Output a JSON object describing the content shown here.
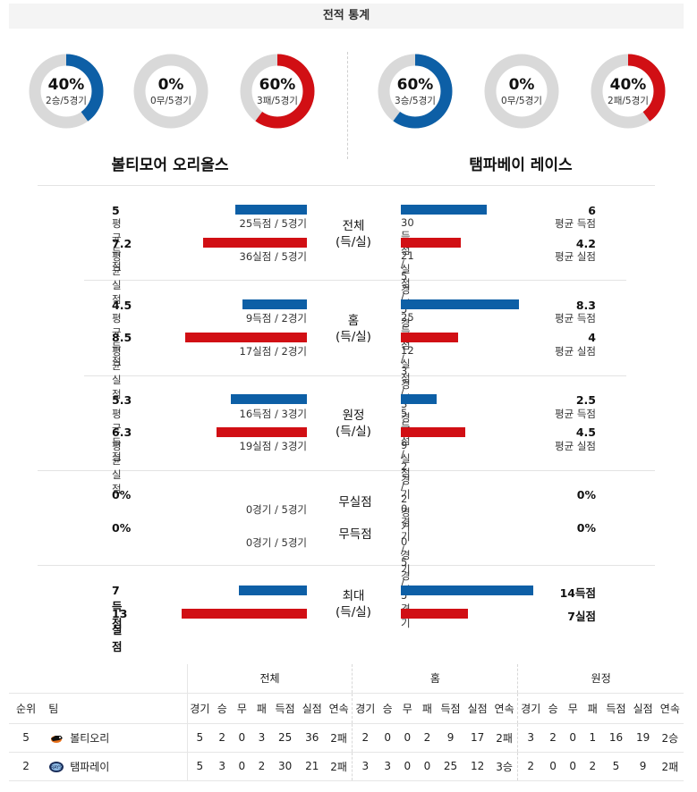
{
  "header": {
    "title": "전적 통계"
  },
  "left_team": {
    "name": "볼티모어 오리올스",
    "donuts": [
      {
        "pct": "40%",
        "sub": "2승/5경기",
        "fraction": 0.4,
        "color": "#0d5fa6"
      },
      {
        "pct": "0%",
        "sub": "0무/5경기",
        "fraction": 0,
        "color": "#0d5fa6"
      },
      {
        "pct": "60%",
        "sub": "3패/5경기",
        "fraction": 0.6,
        "color": "#d10f14"
      }
    ]
  },
  "right_team": {
    "name": "탬파베이 레이스",
    "donuts": [
      {
        "pct": "60%",
        "sub": "3승/5경기",
        "fraction": 0.6,
        "color": "#0d5fa6"
      },
      {
        "pct": "0%",
        "sub": "0무/5경기",
        "fraction": 0,
        "color": "#0d5fa6"
      },
      {
        "pct": "40%",
        "sub": "2패/5경기",
        "fraction": 0.4,
        "color": "#d10f14"
      }
    ]
  },
  "sections": {
    "total": {
      "label_1": "전체",
      "label_2": "(득/실)",
      "left": {
        "scored": "5",
        "scored_label": "평균 득점",
        "scored_detail": "25득점 / 5경기",
        "allowed": "7.2",
        "allowed_label": "평균 실점",
        "allowed_detail": "36실점 / 5경기"
      },
      "right": {
        "scored": "6",
        "scored_label": "평균 득점",
        "scored_detail": "30득점 / 5경기",
        "allowed": "4.2",
        "allowed_label": "평균 실점",
        "allowed_detail": "21실점 / 5경기"
      }
    },
    "home": {
      "label_1": "홈",
      "label_2": "(득/실)",
      "left": {
        "scored": "4.5",
        "scored_label": "평균 득점",
        "scored_detail": "9득점 / 2경기",
        "allowed": "8.5",
        "allowed_label": "평균 실점",
        "allowed_detail": "17실점 / 2경기"
      },
      "right": {
        "scored": "8.3",
        "scored_label": "평균 득점",
        "scored_detail": "25득점 / 3경기",
        "allowed": "4",
        "allowed_label": "평균 실점",
        "allowed_detail": "12실점 / 3경기"
      }
    },
    "away": {
      "label_1": "원정",
      "label_2": "(득/실)",
      "left": {
        "scored": "5.3",
        "scored_label": "평균 득점",
        "scored_detail": "16득점 / 3경기",
        "allowed": "6.3",
        "allowed_label": "평균 실점",
        "allowed_detail": "19실점 / 3경기"
      },
      "right": {
        "scored": "2.5",
        "scored_label": "평균 득점",
        "scored_detail": "5득점 / 2경기",
        "allowed": "4.5",
        "allowed_label": "평균 실점",
        "allowed_detail": "9실점 / 2경기"
      }
    },
    "shutout": {
      "label_a": "무실점",
      "label_b": "무득점",
      "left_a": "0%",
      "left_a_detail": "0경기 / 5경기",
      "left_b": "0%",
      "left_b_detail": "0경기 / 5경기",
      "right_a": "0%",
      "right_a_detail": "0경기 / 5경기",
      "right_b": "0%",
      "right_b_detail": "0경기 / 5경기"
    },
    "max": {
      "label_1": "최대",
      "label_2": "(득/실)",
      "left_scored": "7득점",
      "left_allowed": "13실점",
      "right_scored": "14득점",
      "right_allowed": "7실점"
    }
  },
  "table": {
    "group_headers": [
      "전체",
      "홈",
      "원정"
    ],
    "col_rank": "순위",
    "col_team": "팀",
    "sub_headers": [
      "경기",
      "승",
      "무",
      "패",
      "득점",
      "실점",
      "연속"
    ],
    "rows": [
      {
        "rank": "5",
        "team": "볼티오리",
        "logo": "orioles-logo",
        "total": [
          "5",
          "2",
          "0",
          "3",
          "25",
          "36",
          "2패"
        ],
        "home": [
          "2",
          "0",
          "0",
          "2",
          "9",
          "17",
          "2패"
        ],
        "away": [
          "3",
          "2",
          "0",
          "1",
          "16",
          "19",
          "2승"
        ]
      },
      {
        "rank": "2",
        "team": "탬파레이",
        "logo": "rays-logo",
        "total": [
          "5",
          "3",
          "0",
          "2",
          "30",
          "21",
          "2패"
        ],
        "home": [
          "3",
          "3",
          "0",
          "0",
          "25",
          "12",
          "3승"
        ],
        "away": [
          "2",
          "0",
          "0",
          "2",
          "5",
          "9",
          "2패"
        ]
      }
    ]
  },
  "colors": {
    "blue": "#0d5fa6",
    "red": "#d10f14",
    "grey": "#d9d9d9"
  }
}
